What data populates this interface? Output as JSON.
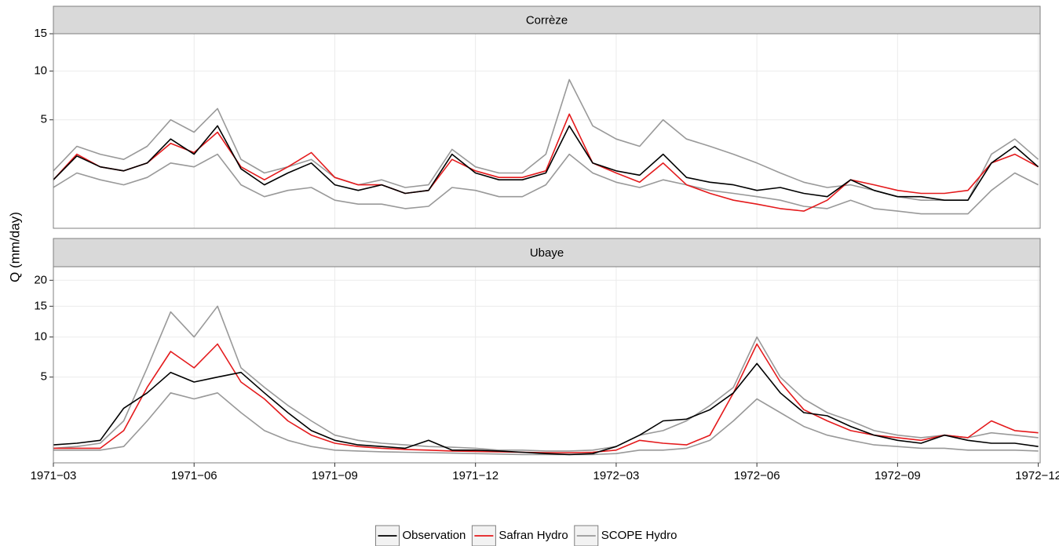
{
  "chart_data": {
    "type": "line",
    "y_label": "Q (mm/day)",
    "scale": "sqrt",
    "grid": true,
    "legend_position": "bottom",
    "x": [
      0,
      0.5,
      1,
      1.5,
      2,
      2.5,
      3,
      3.5,
      4,
      4.5,
      5,
      5.5,
      6,
      6.5,
      7,
      7.5,
      8,
      8.5,
      9,
      9.5,
      10,
      10.5,
      11,
      11.5,
      12,
      12.5,
      13,
      13.5,
      14,
      14.5,
      15,
      15.5,
      16,
      16.5,
      17,
      17.5,
      18,
      18.5,
      19,
      19.5,
      20,
      20.5,
      21
    ],
    "xlim": [
      0,
      21.04
    ],
    "xticks": [
      {
        "value": 0,
        "label": "1971−03"
      },
      {
        "value": 3,
        "label": "1971−06"
      },
      {
        "value": 6,
        "label": "1971−09"
      },
      {
        "value": 9,
        "label": "1971−12"
      },
      {
        "value": 12,
        "label": "1972−03"
      },
      {
        "value": 15,
        "label": "1972−06"
      },
      {
        "value": 18,
        "label": "1972−09"
      },
      {
        "value": 21,
        "label": "1972−12"
      }
    ],
    "legend": [
      {
        "name": "Observation",
        "color": "#000000"
      },
      {
        "name": "Safran Hydro",
        "color": "#e41a1c"
      },
      {
        "name": "SCOPE Hydro",
        "color": "#999999"
      }
    ],
    "facets": [
      {
        "title": "Corrèze",
        "ylim": [
          0.03,
          15
        ],
        "yticks": [
          5,
          10,
          15
        ],
        "lines": [
          {
            "legend": 2,
            "values": [
              1.6,
              3.0,
              2.5,
              2.2,
              3.0,
              5.0,
              4.0,
              6.0,
              2.2,
              1.5,
              1.8,
              2.2,
              1.3,
              1.0,
              1.2,
              0.9,
              1.0,
              2.8,
              1.8,
              1.5,
              1.5,
              2.5,
              9.0,
              4.5,
              3.5,
              3.0,
              5.0,
              3.5,
              3.0,
              2.5,
              2.0,
              1.5,
              1.1,
              0.9,
              1.0,
              0.8,
              0.6,
              0.5,
              0.5,
              0.5,
              2.5,
              3.5,
              2.2
            ]
          },
          {
            "legend": 2,
            "values": [
              0.9,
              1.5,
              1.2,
              1.0,
              1.3,
              2.0,
              1.8,
              2.5,
              1.0,
              0.6,
              0.8,
              0.9,
              0.5,
              0.4,
              0.4,
              0.3,
              0.35,
              0.9,
              0.8,
              0.6,
              0.6,
              1.0,
              2.5,
              1.5,
              1.1,
              0.9,
              1.2,
              1.0,
              0.8,
              0.7,
              0.6,
              0.5,
              0.35,
              0.3,
              0.5,
              0.3,
              0.25,
              0.2,
              0.2,
              0.2,
              0.8,
              1.5,
              1.0
            ]
          },
          {
            "legend": 1,
            "values": [
              1.2,
              2.5,
              1.8,
              1.6,
              2.0,
              3.2,
              2.6,
              4.0,
              1.8,
              1.2,
              1.8,
              2.6,
              1.3,
              1.0,
              1.0,
              0.7,
              0.8,
              2.2,
              1.6,
              1.3,
              1.3,
              1.6,
              5.5,
              2.0,
              1.5,
              1.1,
              2.0,
              1.0,
              0.7,
              0.5,
              0.4,
              0.3,
              0.25,
              0.5,
              1.2,
              1.0,
              0.8,
              0.7,
              0.7,
              0.8,
              2.0,
              2.5,
              1.8
            ]
          },
          {
            "legend": 0,
            "values": [
              1.2,
              2.4,
              1.8,
              1.6,
              2.0,
              3.5,
              2.5,
              4.5,
              1.7,
              1.0,
              1.5,
              2.0,
              1.0,
              0.8,
              1.0,
              0.7,
              0.8,
              2.5,
              1.5,
              1.2,
              1.2,
              1.5,
              4.5,
              2.0,
              1.6,
              1.4,
              2.5,
              1.3,
              1.1,
              1.0,
              0.8,
              0.9,
              0.7,
              0.6,
              1.2,
              0.8,
              0.6,
              0.6,
              0.5,
              0.5,
              2.0,
              3.0,
              1.8
            ]
          }
        ]
      },
      {
        "title": "Ubaye",
        "ylim": [
          0.065,
          22.9
        ],
        "yticks": [
          5,
          10,
          15,
          20
        ],
        "lines": [
          {
            "legend": 2,
            "values": [
              0.35,
              0.4,
              0.5,
              1.5,
              6,
              14,
              10,
              15,
              6,
              4,
              2.5,
              1.5,
              0.8,
              0.6,
              0.5,
              0.45,
              0.4,
              0.38,
              0.35,
              0.3,
              0.3,
              0.28,
              0.28,
              0.3,
              0.4,
              0.8,
              1.0,
              1.5,
              2.5,
              4,
              10,
              5,
              3,
              2,
              1.5,
              1.0,
              0.8,
              0.7,
              0.8,
              0.7,
              0.9,
              0.8,
              0.7
            ]
          },
          {
            "legend": 2,
            "values": [
              0.3,
              0.3,
              0.3,
              0.4,
              1.5,
              3.5,
              3.0,
              3.5,
              2.0,
              1.0,
              0.6,
              0.4,
              0.3,
              0.28,
              0.26,
              0.25,
              0.24,
              0.23,
              0.22,
              0.21,
              0.2,
              0.2,
              0.2,
              0.2,
              0.22,
              0.3,
              0.3,
              0.35,
              0.6,
              1.5,
              3,
              2,
              1.2,
              0.8,
              0.6,
              0.45,
              0.4,
              0.35,
              0.35,
              0.3,
              0.3,
              0.3,
              0.28
            ]
          },
          {
            "legend": 1,
            "values": [
              0.35,
              0.35,
              0.35,
              1.0,
              4.0,
              8,
              6,
              9,
              4.5,
              3.0,
              1.5,
              0.8,
              0.5,
              0.4,
              0.35,
              0.32,
              0.3,
              0.28,
              0.27,
              0.26,
              0.25,
              0.24,
              0.24,
              0.25,
              0.3,
              0.6,
              0.5,
              0.45,
              0.8,
              3.5,
              9,
              4.5,
              2.2,
              1.5,
              1.0,
              0.8,
              0.7,
              0.6,
              0.8,
              0.7,
              1.5,
              1.0,
              0.9
            ]
          },
          {
            "legend": 0,
            "values": [
              0.45,
              0.5,
              0.6,
              2.3,
              3.5,
              5.5,
              4.5,
              5,
              5.5,
              3.5,
              2.0,
              1.0,
              0.6,
              0.45,
              0.4,
              0.35,
              0.6,
              0.3,
              0.3,
              0.28,
              0.25,
              0.22,
              0.2,
              0.22,
              0.4,
              0.8,
              1.5,
              1.6,
              2.2,
              3.5,
              6.5,
              3.5,
              2.0,
              1.8,
              1.2,
              0.8,
              0.6,
              0.5,
              0.8,
              0.6,
              0.5,
              0.5,
              0.4
            ]
          }
        ]
      }
    ]
  }
}
